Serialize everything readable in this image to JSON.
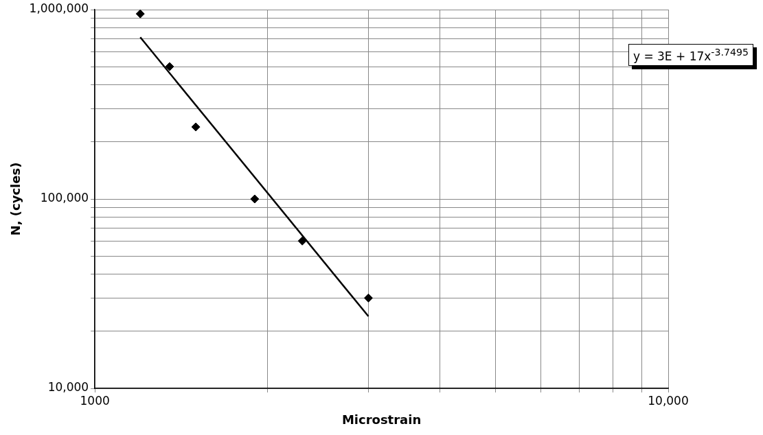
{
  "chart_data": {
    "type": "scatter",
    "xlabel": "Microstrain",
    "ylabel": "N, (cycles)",
    "log": "xy",
    "grid": true,
    "legend": false,
    "marker": "diamond",
    "xlim": [
      1000,
      10000
    ],
    "xticks": [
      {
        "value": 1000,
        "label": "1000"
      },
      {
        "value": 2000,
        "label": null
      },
      {
        "value": 3000,
        "label": null
      },
      {
        "value": 4000,
        "label": null
      },
      {
        "value": 5000,
        "label": null
      },
      {
        "value": 6000,
        "label": null
      },
      {
        "value": 7000,
        "label": null
      },
      {
        "value": 8000,
        "label": null
      },
      {
        "value": 9000,
        "label": null
      },
      {
        "value": 10000,
        "label": "10,000"
      }
    ],
    "ylim": [
      10000,
      1000000
    ],
    "yticks": [
      {
        "value": 10000,
        "label": "10,000"
      },
      {
        "value": 20000,
        "label": null
      },
      {
        "value": 30000,
        "label": null
      },
      {
        "value": 40000,
        "label": null
      },
      {
        "value": 50000,
        "label": null
      },
      {
        "value": 60000,
        "label": null
      },
      {
        "value": 70000,
        "label": null
      },
      {
        "value": 80000,
        "label": null
      },
      {
        "value": 90000,
        "label": null
      },
      {
        "value": 100000,
        "label": "100,000"
      },
      {
        "value": 200000,
        "label": null
      },
      {
        "value": 300000,
        "label": null
      },
      {
        "value": 400000,
        "label": null
      },
      {
        "value": 500000,
        "label": null
      },
      {
        "value": 600000,
        "label": null
      },
      {
        "value": 700000,
        "label": null
      },
      {
        "value": 800000,
        "label": null
      },
      {
        "value": 900000,
        "label": null
      },
      {
        "value": 1000000,
        "label": "1,000,000"
      }
    ],
    "series": [
      {
        "color": "#000000",
        "x": [
          1200,
          1350,
          1500,
          1900,
          2300,
          3000
        ],
        "values": [
          950000,
          500000,
          240000,
          100000,
          60000,
          30000
        ]
      },
      {
        "type": "line",
        "color": "#000000",
        "marker": "none",
        "x": [
          1200,
          3000
        ],
        "values": [
          715000,
          24000
        ]
      }
    ],
    "annotations": [
      "y = 3E + 17x$^{-3.7495}$"
    ]
  }
}
